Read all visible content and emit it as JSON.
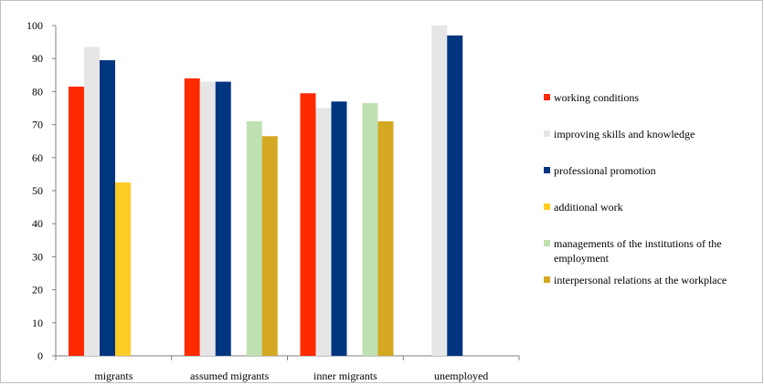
{
  "chart_data": {
    "type": "bar",
    "categories": [
      "migrants",
      "assumed migrants",
      "inner migrants",
      "unemployed"
    ],
    "ylim": [
      0,
      100
    ],
    "yticks": [
      0,
      10,
      20,
      30,
      40,
      50,
      60,
      70,
      80,
      90,
      100
    ],
    "grid": false,
    "legend_position": "right",
    "series": [
      {
        "name": "working conditions",
        "color": "#ff2a00",
        "values": [
          81.5,
          84,
          79.5,
          null
        ]
      },
      {
        "name": "improving skills and knowledge",
        "color": "#e6e6e6",
        "values": [
          93.5,
          83,
          75,
          100
        ]
      },
      {
        "name": "professional promotion",
        "color": "#003580",
        "values": [
          89.5,
          83,
          77,
          97
        ]
      },
      {
        "name": "additional work",
        "color": "#ffcc26",
        "values": [
          52.5,
          null,
          null,
          null
        ]
      },
      {
        "name": "managements of the institutions of the employment",
        "legend_lines": [
          "managements of the institutions of the",
          "employment"
        ],
        "color": "#bfe0b0",
        "values": [
          null,
          71,
          76.5,
          null
        ]
      },
      {
        "name": "interpersonal relations at the workplace",
        "color": "#d4a820",
        "values": [
          null,
          66.5,
          71,
          null
        ]
      }
    ]
  }
}
